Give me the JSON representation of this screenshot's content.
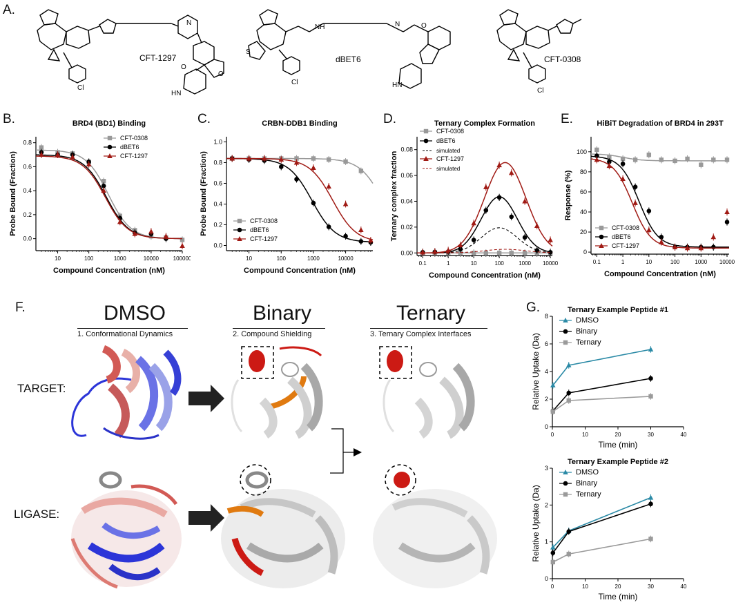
{
  "panels": {
    "A": "A.",
    "B": "B.",
    "C": "C.",
    "D": "D.",
    "E": "E.",
    "F": "F.",
    "G": "G."
  },
  "structures": {
    "compound1": "CFT-1297",
    "compound2": "dBET6",
    "compound3": "CFT-0308",
    "atoms": {
      "N": "N",
      "Cl": "Cl",
      "S": "S",
      "O": "O",
      "H": "H",
      "NH": "NH",
      "HN": "HN"
    }
  },
  "figure_F": {
    "columns": [
      {
        "title": "DMSO",
        "subtitle": "1. Conformational Dynamics"
      },
      {
        "title": "Binary",
        "subtitle": "2. Compound Shielding"
      },
      {
        "title": "Ternary",
        "subtitle": "3. Ternary Complex Interfaces"
      }
    ],
    "rows": [
      "TARGET:",
      "LIGASE:"
    ],
    "colors": {
      "red": "#cc1a14",
      "blue": "#2c35d8",
      "orange": "#e07a10",
      "grey": "#bdbdbd"
    }
  },
  "chart_data": [
    {
      "id": "B",
      "type": "scatter",
      "title": "BRD4 (BD1) Binding",
      "xlabel": "Compound Concentration (nM)",
      "ylabel": "Probe Bound (Fraction)",
      "xscale": "log",
      "xlim": [
        2,
        100000
      ],
      "ylim": [
        -0.1,
        0.85
      ],
      "xticks": [
        10,
        100,
        1000,
        10000,
        100000
      ],
      "xticklabels": [
        "10",
        "100",
        "1000",
        "10000",
        "100000"
      ],
      "yticks": [
        0.0,
        0.2,
        0.4,
        0.6,
        0.8
      ],
      "yticklabels": [
        "0.0",
        "0.2",
        "0.4",
        "0.6",
        "0.8"
      ],
      "legend": "top-right",
      "series": [
        {
          "name": "CFT-0308",
          "color": "#999999",
          "marker": "square",
          "x": [
            3,
            10,
            30,
            100,
            300,
            1000,
            3000,
            10000,
            30000,
            100000
          ],
          "y": [
            0.76,
            0.72,
            0.71,
            0.64,
            0.48,
            0.19,
            0.07,
            0.02,
            0.01,
            -0.01
          ],
          "curve": {
            "top": 0.74,
            "bottom": 0.0,
            "ic50": 420
          }
        },
        {
          "name": "dBET6",
          "color": "#000000",
          "marker": "circle",
          "x": [
            3,
            10,
            30,
            100,
            300,
            1000,
            3000,
            10000,
            30000
          ],
          "y": [
            0.72,
            0.7,
            0.7,
            0.64,
            0.44,
            0.17,
            0.05,
            0.04,
            0.0
          ],
          "curve": {
            "top": 0.7,
            "bottom": 0.0,
            "ic50": 360
          }
        },
        {
          "name": "CFT-1297",
          "color": "#a01a14",
          "marker": "triangle",
          "x": [
            3,
            10,
            30,
            100,
            300,
            1000,
            3000,
            10000,
            30000,
            100000
          ],
          "y": [
            0.7,
            0.7,
            0.68,
            0.62,
            0.4,
            0.14,
            0.04,
            0.06,
            0.02,
            -0.06
          ],
          "curve": {
            "top": 0.69,
            "bottom": 0.0,
            "ic50": 340
          }
        }
      ]
    },
    {
      "id": "C",
      "type": "scatter",
      "title": "CRBN-DDB1 Binding",
      "xlabel": "Compound Concentration (nM)",
      "ylabel": "Probe Bound (Fraction)",
      "xscale": "log",
      "xlim": [
        2,
        70000
      ],
      "ylim": [
        -0.05,
        1.05
      ],
      "xticks": [
        10,
        100,
        1000,
        10000
      ],
      "xticklabels": [
        "10",
        "100",
        "1000",
        "10000"
      ],
      "yticks": [
        0.0,
        0.2,
        0.4,
        0.6,
        0.8,
        1.0
      ],
      "yticklabels": [
        "0.0",
        "0.2",
        "0.4",
        "0.6",
        "0.8",
        "1.0"
      ],
      "legend": "bottom-left",
      "series": [
        {
          "name": "CFT-0308",
          "color": "#999999",
          "marker": "square",
          "x": [
            3,
            10,
            30,
            100,
            300,
            1000,
            3000,
            10000,
            30000
          ],
          "y": [
            0.84,
            0.84,
            0.84,
            0.84,
            0.84,
            0.84,
            0.83,
            0.81,
            0.72
          ],
          "curve": {
            "top": 0.84,
            "bottom": 0.0,
            "ic50": 150000
          }
        },
        {
          "name": "dBET6",
          "color": "#000000",
          "marker": "circle",
          "x": [
            3,
            10,
            30,
            100,
            300,
            1000,
            3000,
            10000,
            30000,
            60000
          ],
          "y": [
            0.84,
            0.83,
            0.82,
            0.76,
            0.64,
            0.41,
            0.18,
            0.09,
            0.04,
            0.03
          ],
          "curve": {
            "top": 0.84,
            "bottom": 0.03,
            "ic50": 900
          }
        },
        {
          "name": "CFT-1297",
          "color": "#a01a14",
          "marker": "triangle",
          "x": [
            3,
            10,
            30,
            100,
            300,
            1000,
            3000,
            10000,
            30000,
            60000
          ],
          "y": [
            0.84,
            0.84,
            0.84,
            0.83,
            0.8,
            0.75,
            0.57,
            0.4,
            0.15,
            0.05
          ],
          "curve": {
            "top": 0.84,
            "bottom": 0.03,
            "ic50": 4000
          }
        }
      ]
    },
    {
      "id": "D",
      "type": "scatter",
      "title": "Ternary Complex Formation",
      "xlabel": "Compound Concentration (nM)",
      "ylabel": "Ternary complex fraction",
      "xscale": "log",
      "xlim": [
        0.06,
        12000
      ],
      "ylim": [
        -0.002,
        0.09
      ],
      "xticks": [
        0.1,
        1,
        10,
        100,
        1000,
        10000
      ],
      "xticklabels": [
        "0.1",
        "1",
        "10",
        "100",
        "1000",
        "10000"
      ],
      "yticks": [
        0.0,
        0.02,
        0.04,
        0.06,
        0.08
      ],
      "yticklabels": [
        "0.00",
        "0.02",
        "0.04",
        "0.06",
        "0.08"
      ],
      "legend": "top-left",
      "series": [
        {
          "name": "CFT-0308",
          "color": "#999999",
          "marker": "square",
          "x": [
            0.1,
            0.3,
            1,
            3,
            10,
            30,
            100,
            300,
            1000,
            3000,
            10000
          ],
          "y": [
            0,
            0,
            0,
            0,
            0,
            0,
            0,
            0,
            0,
            0,
            0
          ],
          "bell": {
            "peak": 0.0,
            "center": 100,
            "width": 1.0
          }
        },
        {
          "name": "dBET6",
          "color": "#000000",
          "marker": "circle",
          "x": [
            0.1,
            0.3,
            1,
            3,
            10,
            30,
            100,
            300,
            1000,
            3000,
            10000
          ],
          "y": [
            0.0005,
            0.0008,
            0.001,
            0.003,
            0.01,
            0.033,
            0.043,
            0.028,
            0.012,
            0.002,
            0.0005
          ],
          "bell": {
            "peak": 0.0435,
            "center": 100,
            "width": 1.0
          }
        },
        {
          "name": "simulated",
          "color": "#000000",
          "dashed": true,
          "bell": {
            "peak": 0.0195,
            "center": 100,
            "width": 1.0
          }
        },
        {
          "name": "CFT-1297",
          "color": "#a01a14",
          "marker": "triangle",
          "x": [
            0.1,
            0.3,
            1,
            3,
            10,
            30,
            100,
            300,
            1000,
            3000,
            10000
          ],
          "y": [
            0.0005,
            0.001,
            0.002,
            0.006,
            0.023,
            0.051,
            0.068,
            0.062,
            0.04,
            0.021,
            0.01
          ],
          "bell": {
            "peak": 0.07,
            "center": 170,
            "width": 1.15
          }
        },
        {
          "name": "simulated",
          "color": "#a01a14",
          "dashed": true,
          "bell": {
            "peak": 0.0028,
            "center": 170,
            "width": 1.15
          }
        }
      ]
    },
    {
      "id": "E",
      "type": "scatter",
      "title": "HiBiT Degradation of BRD4 in 293T",
      "xlabel": "Compound Concentration (nM)",
      "ylabel": "Response (%)",
      "xscale": "log",
      "xlim": [
        0.06,
        12000
      ],
      "ylim": [
        -2,
        115
      ],
      "xticks": [
        0.1,
        1,
        10,
        100,
        1000,
        10000
      ],
      "xticklabels": [
        "0.1",
        "1",
        "10",
        "100",
        "1000",
        "10000"
      ],
      "yticks": [
        0,
        20,
        40,
        60,
        80,
        100
      ],
      "yticklabels": [
        "0",
        "20",
        "40",
        "60",
        "80",
        "100"
      ],
      "legend": "bottom-left",
      "series": [
        {
          "name": "CFT-0308",
          "color": "#999999",
          "marker": "square",
          "x": [
            0.1,
            0.3,
            1,
            3,
            10,
            30,
            100,
            300,
            1000,
            3000,
            10000
          ],
          "y": [
            102,
            95,
            93,
            92,
            97,
            92,
            91,
            93,
            87,
            92,
            92
          ],
          "curve": {
            "top": 98,
            "bottom": 91,
            "ic50": 1.0
          }
        },
        {
          "name": "dBET6",
          "color": "#000000",
          "marker": "circle",
          "x": [
            0.1,
            0.3,
            1,
            3,
            10,
            30,
            100,
            300,
            1000,
            3000,
            10000
          ],
          "y": [
            96,
            90,
            88,
            65,
            41,
            15,
            5,
            5,
            5,
            5,
            30
          ],
          "curve": {
            "top": 96,
            "bottom": 5,
            "ic50": 4.2
          }
        },
        {
          "name": "CFT-1297",
          "color": "#a01a14",
          "marker": "triangle",
          "x": [
            0.1,
            0.3,
            1,
            3,
            10,
            30,
            100,
            300,
            1000,
            3000,
            10000
          ],
          "y": [
            92,
            86,
            73,
            49,
            22,
            10,
            5,
            4,
            4,
            15,
            40
          ],
          "curve": {
            "top": 94,
            "bottom": 4,
            "ic50": 2.3
          }
        }
      ]
    },
    {
      "id": "G1",
      "type": "line",
      "title": "Ternary Example Peptide #1",
      "xlabel": "Time (min)",
      "ylabel": "Relative  Uptake (Da)",
      "xlim": [
        0,
        40
      ],
      "ylim": [
        0,
        8
      ],
      "xticks": [
        0,
        10,
        20,
        30,
        40
      ],
      "xticklabels": [
        "0",
        "10",
        "20",
        "30",
        "40"
      ],
      "yticks": [
        0,
        2,
        4,
        6,
        8
      ],
      "yticklabels": [
        "0",
        "2",
        "4",
        "6",
        "8"
      ],
      "legend": "top-left",
      "series": [
        {
          "name": "DMSO",
          "color": "#2b8aa6",
          "marker": "triangle",
          "x": [
            0.17,
            5,
            30
          ],
          "y": [
            3.0,
            4.45,
            5.6
          ]
        },
        {
          "name": "Binary",
          "color": "#000000",
          "marker": "circle",
          "x": [
            0.17,
            5,
            30
          ],
          "y": [
            1.15,
            2.45,
            3.5
          ]
        },
        {
          "name": "Ternary",
          "color": "#9a9a9a",
          "marker": "square",
          "x": [
            0.17,
            5,
            30
          ],
          "y": [
            1.1,
            1.9,
            2.2
          ]
        }
      ]
    },
    {
      "id": "G2",
      "type": "line",
      "title": "Ternary Example Peptide #2",
      "xlabel": "Time (min)",
      "ylabel": "Relative  Uptake (Da)",
      "xlim": [
        0,
        40
      ],
      "ylim": [
        0,
        3
      ],
      "xticks": [
        0,
        10,
        20,
        30,
        40
      ],
      "xticklabels": [
        "0",
        "10",
        "20",
        "30",
        "40"
      ],
      "yticks": [
        0,
        1,
        2,
        3
      ],
      "yticklabels": [
        "0",
        "1",
        "2",
        "3"
      ],
      "legend": "top-left",
      "series": [
        {
          "name": "DMSO",
          "color": "#2b8aa6",
          "marker": "triangle",
          "x": [
            0.17,
            5,
            30
          ],
          "y": [
            0.85,
            1.3,
            2.2
          ]
        },
        {
          "name": "Binary",
          "color": "#000000",
          "marker": "circle",
          "x": [
            0.17,
            5,
            30
          ],
          "y": [
            0.7,
            1.28,
            2.03
          ]
        },
        {
          "name": "Ternary",
          "color": "#9a9a9a",
          "marker": "square",
          "x": [
            0.17,
            5,
            30
          ],
          "y": [
            0.45,
            0.67,
            1.08
          ]
        }
      ]
    }
  ]
}
